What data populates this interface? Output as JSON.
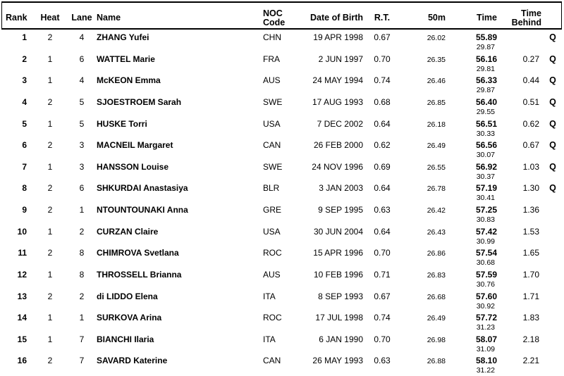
{
  "table": {
    "headers": {
      "rank": "Rank",
      "heat": "Heat",
      "lane": "Lane",
      "name": "Name",
      "noc_line1": "NOC",
      "noc_line2": "Code",
      "dob": "Date of Birth",
      "rt": "R.T.",
      "split50": "50m",
      "time": "Time",
      "behind_line1": "Time",
      "behind_line2": "Behind"
    },
    "rows": [
      {
        "rank": "1",
        "heat": "2",
        "lane": "4",
        "name": "ZHANG Yufei",
        "noc": "CHN",
        "dob": "19 APR 1998",
        "rt": "0.67",
        "split50": "26.02",
        "time": "55.89",
        "split": "29.87",
        "behind": "",
        "q": "Q"
      },
      {
        "rank": "2",
        "heat": "1",
        "lane": "6",
        "name": "WATTEL Marie",
        "noc": "FRA",
        "dob": "2 JUN 1997",
        "rt": "0.70",
        "split50": "26.35",
        "time": "56.16",
        "split": "29.81",
        "behind": "0.27",
        "q": "Q"
      },
      {
        "rank": "3",
        "heat": "1",
        "lane": "4",
        "name": "McKEON Emma",
        "noc": "AUS",
        "dob": "24 MAY 1994",
        "rt": "0.74",
        "split50": "26.46",
        "time": "56.33",
        "split": "29.87",
        "behind": "0.44",
        "q": "Q"
      },
      {
        "rank": "4",
        "heat": "2",
        "lane": "5",
        "name": "SJOESTROEM Sarah",
        "noc": "SWE",
        "dob": "17 AUG 1993",
        "rt": "0.68",
        "split50": "26.85",
        "time": "56.40",
        "split": "29.55",
        "behind": "0.51",
        "q": "Q"
      },
      {
        "rank": "5",
        "heat": "1",
        "lane": "5",
        "name": "HUSKE Torri",
        "noc": "USA",
        "dob": "7 DEC 2002",
        "rt": "0.64",
        "split50": "26.18",
        "time": "56.51",
        "split": "30.33",
        "behind": "0.62",
        "q": "Q"
      },
      {
        "rank": "6",
        "heat": "2",
        "lane": "3",
        "name": "MACNEIL Margaret",
        "noc": "CAN",
        "dob": "26 FEB 2000",
        "rt": "0.62",
        "split50": "26.49",
        "time": "56.56",
        "split": "30.07",
        "behind": "0.67",
        "q": "Q"
      },
      {
        "rank": "7",
        "heat": "1",
        "lane": "3",
        "name": "HANSSON Louise",
        "noc": "SWE",
        "dob": "24 NOV 1996",
        "rt": "0.69",
        "split50": "26.55",
        "time": "56.92",
        "split": "30.37",
        "behind": "1.03",
        "q": "Q"
      },
      {
        "rank": "8",
        "heat": "2",
        "lane": "6",
        "name": "SHKURDAI Anastasiya",
        "noc": "BLR",
        "dob": "3 JAN 2003",
        "rt": "0.64",
        "split50": "26.78",
        "time": "57.19",
        "split": "30.41",
        "behind": "1.30",
        "q": "Q"
      },
      {
        "rank": "9",
        "heat": "2",
        "lane": "1",
        "name": "NTOUNTOUNAKI Anna",
        "noc": "GRE",
        "dob": "9 SEP 1995",
        "rt": "0.63",
        "split50": "26.42",
        "time": "57.25",
        "split": "30.83",
        "behind": "1.36",
        "q": ""
      },
      {
        "rank": "10",
        "heat": "1",
        "lane": "2",
        "name": "CURZAN Claire",
        "noc": "USA",
        "dob": "30 JUN 2004",
        "rt": "0.64",
        "split50": "26.43",
        "time": "57.42",
        "split": "30.99",
        "behind": "1.53",
        "q": ""
      },
      {
        "rank": "11",
        "heat": "2",
        "lane": "8",
        "name": "CHIMROVA Svetlana",
        "noc": "ROC",
        "dob": "15 APR 1996",
        "rt": "0.70",
        "split50": "26.86",
        "time": "57.54",
        "split": "30.68",
        "behind": "1.65",
        "q": ""
      },
      {
        "rank": "12",
        "heat": "1",
        "lane": "8",
        "name": "THROSSELL Brianna",
        "noc": "AUS",
        "dob": "10 FEB 1996",
        "rt": "0.71",
        "split50": "26.83",
        "time": "57.59",
        "split": "30.76",
        "behind": "1.70",
        "q": ""
      },
      {
        "rank": "13",
        "heat": "2",
        "lane": "2",
        "name": "di LIDDO Elena",
        "noc": "ITA",
        "dob": "8 SEP 1993",
        "rt": "0.67",
        "split50": "26.68",
        "time": "57.60",
        "split": "30.92",
        "behind": "1.71",
        "q": ""
      },
      {
        "rank": "14",
        "heat": "1",
        "lane": "1",
        "name": "SURKOVA Arina",
        "noc": "ROC",
        "dob": "17 JUL 1998",
        "rt": "0.74",
        "split50": "26.49",
        "time": "57.72",
        "split": "31.23",
        "behind": "1.83",
        "q": ""
      },
      {
        "rank": "15",
        "heat": "1",
        "lane": "7",
        "name": "BIANCHI Ilaria",
        "noc": "ITA",
        "dob": "6 JAN 1990",
        "rt": "0.70",
        "split50": "26.98",
        "time": "58.07",
        "split": "31.09",
        "behind": "2.18",
        "q": ""
      },
      {
        "rank": "16",
        "heat": "2",
        "lane": "7",
        "name": "SAVARD Katerine",
        "noc": "CAN",
        "dob": "26 MAY 1993",
        "rt": "0.63",
        "split50": "26.88",
        "time": "58.10",
        "split": "31.22",
        "behind": "2.21",
        "q": ""
      }
    ]
  }
}
